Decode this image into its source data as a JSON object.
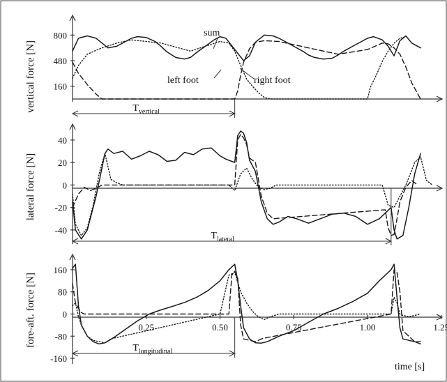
{
  "chart_data": [
    {
      "type": "line",
      "ylabel": "vertical force [N]",
      "ytick_labels": [
        "800",
        "480",
        "160"
      ],
      "ytick_values": [
        800,
        480,
        160
      ],
      "ylim": [
        0,
        960
      ],
      "xlim": [
        0,
        1.3
      ],
      "annotations": [
        {
          "id": "sum",
          "text": "sum"
        },
        {
          "id": "left",
          "text": "left foot"
        },
        {
          "id": "right",
          "text": "right foot"
        }
      ],
      "period": {
        "base": "T",
        "sub": "vertical",
        "from": 0.0,
        "to": 0.55
      },
      "series": [
        {
          "id": "sum",
          "style": "solid",
          "x": [
            0.0,
            0.02,
            0.05,
            0.08,
            0.1,
            0.12,
            0.15,
            0.18,
            0.2,
            0.22,
            0.25,
            0.28,
            0.3,
            0.32,
            0.35,
            0.38,
            0.4,
            0.42,
            0.45,
            0.48,
            0.5,
            0.52,
            0.55,
            0.58,
            0.6,
            0.62,
            0.65,
            0.68,
            0.7,
            0.72,
            0.75,
            0.78,
            0.8,
            0.82,
            0.85,
            0.88,
            0.9,
            0.92,
            0.95,
            0.98,
            1.0,
            1.02,
            1.05,
            1.07,
            1.09,
            1.11,
            1.13,
            1.15,
            1.18
          ],
          "y": [
            600,
            760,
            790,
            760,
            700,
            640,
            660,
            720,
            760,
            780,
            770,
            720,
            660,
            590,
            520,
            500,
            520,
            580,
            660,
            740,
            780,
            760,
            620,
            480,
            540,
            710,
            800,
            790,
            760,
            720,
            660,
            600,
            550,
            520,
            500,
            510,
            550,
            600,
            660,
            720,
            760,
            780,
            740,
            660,
            540,
            730,
            790,
            700,
            640
          ]
        },
        {
          "id": "left",
          "style": "dashed",
          "x": [
            0.0,
            0.02,
            0.05,
            0.08,
            0.1,
            0.12,
            0.55,
            0.56,
            0.57,
            0.58,
            0.6,
            0.62,
            0.65,
            0.7,
            0.8,
            0.9,
            1.0,
            1.05,
            1.07,
            1.09,
            1.11,
            1.13,
            1.15,
            1.18
          ],
          "y": [
            460,
            320,
            180,
            60,
            0,
            0,
            0,
            100,
            300,
            460,
            630,
            710,
            730,
            720,
            640,
            560,
            620,
            700,
            690,
            640,
            560,
            400,
            200,
            0
          ]
        },
        {
          "id": "right",
          "style": "dotted",
          "x": [
            0.0,
            0.02,
            0.05,
            0.08,
            0.1,
            0.15,
            0.2,
            0.3,
            0.4,
            0.5,
            0.53,
            0.55,
            0.57,
            0.59,
            0.61,
            0.63,
            0.65,
            0.67,
            1.0,
            1.01,
            1.03,
            1.05,
            1.07,
            1.09,
            1.11,
            1.13
          ],
          "y": [
            260,
            420,
            560,
            610,
            640,
            700,
            740,
            700,
            600,
            720,
            700,
            600,
            420,
            250,
            160,
            80,
            20,
            0,
            0,
            150,
            300,
            470,
            600,
            700,
            760,
            780
          ]
        }
      ]
    },
    {
      "type": "line",
      "ylabel": "lateral force [N]",
      "ytick_labels": [
        "40",
        "20",
        "0",
        "-20",
        "-40"
      ],
      "ytick_values": [
        40,
        20,
        0,
        -20,
        -40
      ],
      "ylim": [
        -50,
        48
      ],
      "xlim": [
        0,
        1.3
      ],
      "period": {
        "base": "T",
        "sub": "lateral",
        "from": 0.0,
        "to": 1.08
      },
      "series": [
        {
          "id": "sum",
          "style": "solid",
          "x": [
            0.0,
            0.01,
            0.03,
            0.05,
            0.08,
            0.11,
            0.12,
            0.14,
            0.17,
            0.2,
            0.23,
            0.26,
            0.29,
            0.32,
            0.35,
            0.38,
            0.41,
            0.44,
            0.47,
            0.5,
            0.52,
            0.54,
            0.55,
            0.56,
            0.57,
            0.58,
            0.59,
            0.6,
            0.62,
            0.64,
            0.66,
            0.68,
            0.7,
            0.73,
            0.76,
            0.8,
            0.84,
            0.88,
            0.92,
            0.96,
            1.0,
            1.04,
            1.06,
            1.08,
            1.09,
            1.1,
            1.12,
            1.14,
            1.16,
            1.18
          ],
          "y": [
            -15,
            -40,
            -48,
            -40,
            -10,
            28,
            32,
            28,
            30,
            23,
            26,
            30,
            27,
            21,
            22,
            29,
            27,
            32,
            33,
            26,
            23,
            21,
            20,
            44,
            48,
            46,
            38,
            22,
            12,
            -15,
            -30,
            -35,
            -33,
            -28,
            -30,
            -34,
            -30,
            -26,
            -25,
            -28,
            -35,
            -30,
            -25,
            -20,
            -40,
            -48,
            -45,
            -20,
            10,
            28
          ]
        },
        {
          "id": "left",
          "style": "dashed",
          "x": [
            0.0,
            0.02,
            0.04,
            0.06,
            0.08,
            0.1,
            0.12,
            0.55,
            0.56,
            0.57,
            0.58,
            0.59,
            0.6,
            0.62,
            0.64,
            0.66,
            0.68,
            1.06,
            1.07,
            1.08,
            1.09,
            1.1,
            1.11,
            1.13,
            1.15,
            1.17
          ],
          "y": [
            -20,
            -8,
            -2,
            -5,
            -3,
            0,
            0,
            0,
            40,
            45,
            42,
            36,
            24,
            20,
            -10,
            -25,
            -30,
            -22,
            -38,
            -45,
            -44,
            -30,
            -15,
            -2,
            4,
            0
          ]
        },
        {
          "id": "right",
          "style": "dotted",
          "x": [
            0.0,
            0.01,
            0.03,
            0.05,
            0.07,
            0.09,
            0.11,
            0.13,
            0.15,
            0.17,
            0.53,
            0.55,
            0.57,
            0.59,
            0.61,
            0.63,
            0.65,
            0.67,
            0.69,
            0.7,
            1.05,
            1.07,
            1.09,
            1.11,
            1.13,
            1.16,
            1.18,
            1.2,
            1.22
          ],
          "y": [
            -8,
            -35,
            -45,
            -38,
            -18,
            10,
            28,
            5,
            2,
            0,
            0,
            -5,
            10,
            15,
            5,
            -2,
            -4,
            -3,
            0,
            0,
            0,
            -18,
            -20,
            -10,
            0,
            20,
            25,
            4,
            0
          ]
        }
      ]
    },
    {
      "type": "line",
      "ylabel": "fore-aft. force [N]",
      "ytick_labels": [
        "160",
        "80",
        "0",
        "-80",
        "-160"
      ],
      "ytick_values": [
        160,
        80,
        0,
        -80,
        -160
      ],
      "xtick_labels": [
        "0.25",
        "0.50",
        "0.75",
        "1.00",
        "1.25"
      ],
      "xtick_values": [
        0.25,
        0.5,
        0.75,
        1.0,
        1.25
      ],
      "xlabel": "time [s]",
      "ylim": [
        -170,
        190
      ],
      "xlim": [
        0,
        1.3
      ],
      "period": {
        "base": "T",
        "sub": "longitudinal",
        "from": 0.0,
        "to": 0.55
      },
      "series": [
        {
          "id": "sum",
          "style": "solid",
          "x": [
            0.0,
            0.01,
            0.02,
            0.03,
            0.05,
            0.07,
            0.09,
            0.11,
            0.14,
            0.18,
            0.22,
            0.26,
            0.3,
            0.34,
            0.38,
            0.42,
            0.46,
            0.5,
            0.53,
            0.55,
            0.56,
            0.57,
            0.58,
            0.6,
            0.62,
            0.64,
            0.66,
            0.7,
            0.75,
            0.8,
            0.85,
            0.9,
            0.95,
            1.0,
            1.04,
            1.08,
            1.09,
            1.1,
            1.11,
            1.12,
            1.14,
            1.16,
            1.18
          ],
          "y": [
            165,
            180,
            30,
            -40,
            -80,
            -100,
            -108,
            -104,
            -85,
            -55,
            -25,
            0,
            15,
            28,
            42,
            60,
            85,
            120,
            160,
            180,
            120,
            30,
            -50,
            -90,
            -104,
            -105,
            -100,
            -80,
            -60,
            -30,
            0,
            20,
            45,
            75,
            120,
            160,
            180,
            60,
            -50,
            -90,
            -95,
            -100,
            -108
          ]
        },
        {
          "id": "left",
          "style": "dashed",
          "x": [
            0.0,
            0.01,
            0.02,
            0.03,
            0.04,
            0.06,
            0.09,
            0.11,
            0.53,
            0.54,
            0.55,
            0.56,
            0.57,
            0.58,
            0.6,
            0.62,
            0.64,
            0.66,
            1.08,
            1.09,
            1.1,
            1.11,
            1.12,
            1.14,
            1.16,
            1.18
          ],
          "y": [
            110,
            40,
            20,
            5,
            0,
            0,
            0,
            0,
            0,
            140,
            155,
            130,
            -40,
            -90,
            -95,
            -100,
            -90,
            -85,
            0,
            160,
            150,
            80,
            -60,
            -80,
            -100,
            -100
          ]
        },
        {
          "id": "right",
          "style": "dotted",
          "x": [
            0.0,
            0.01,
            0.02,
            0.03,
            0.05,
            0.07,
            0.09,
            0.11,
            0.13,
            0.15,
            0.5,
            0.53,
            0.55,
            0.57,
            0.59,
            0.61,
            0.63,
            0.65,
            0.67,
            0.7,
            1.08,
            1.09,
            1.1,
            1.11,
            1.12,
            1.14,
            1.16,
            1.18
          ],
          "y": [
            30,
            40,
            -10,
            -40,
            -80,
            -95,
            -100,
            -104,
            -90,
            -85,
            0,
            140,
            150,
            80,
            40,
            10,
            -10,
            -20,
            -10,
            0,
            0,
            60,
            40,
            0,
            -5,
            -10,
            -5,
            0
          ]
        }
      ]
    }
  ]
}
